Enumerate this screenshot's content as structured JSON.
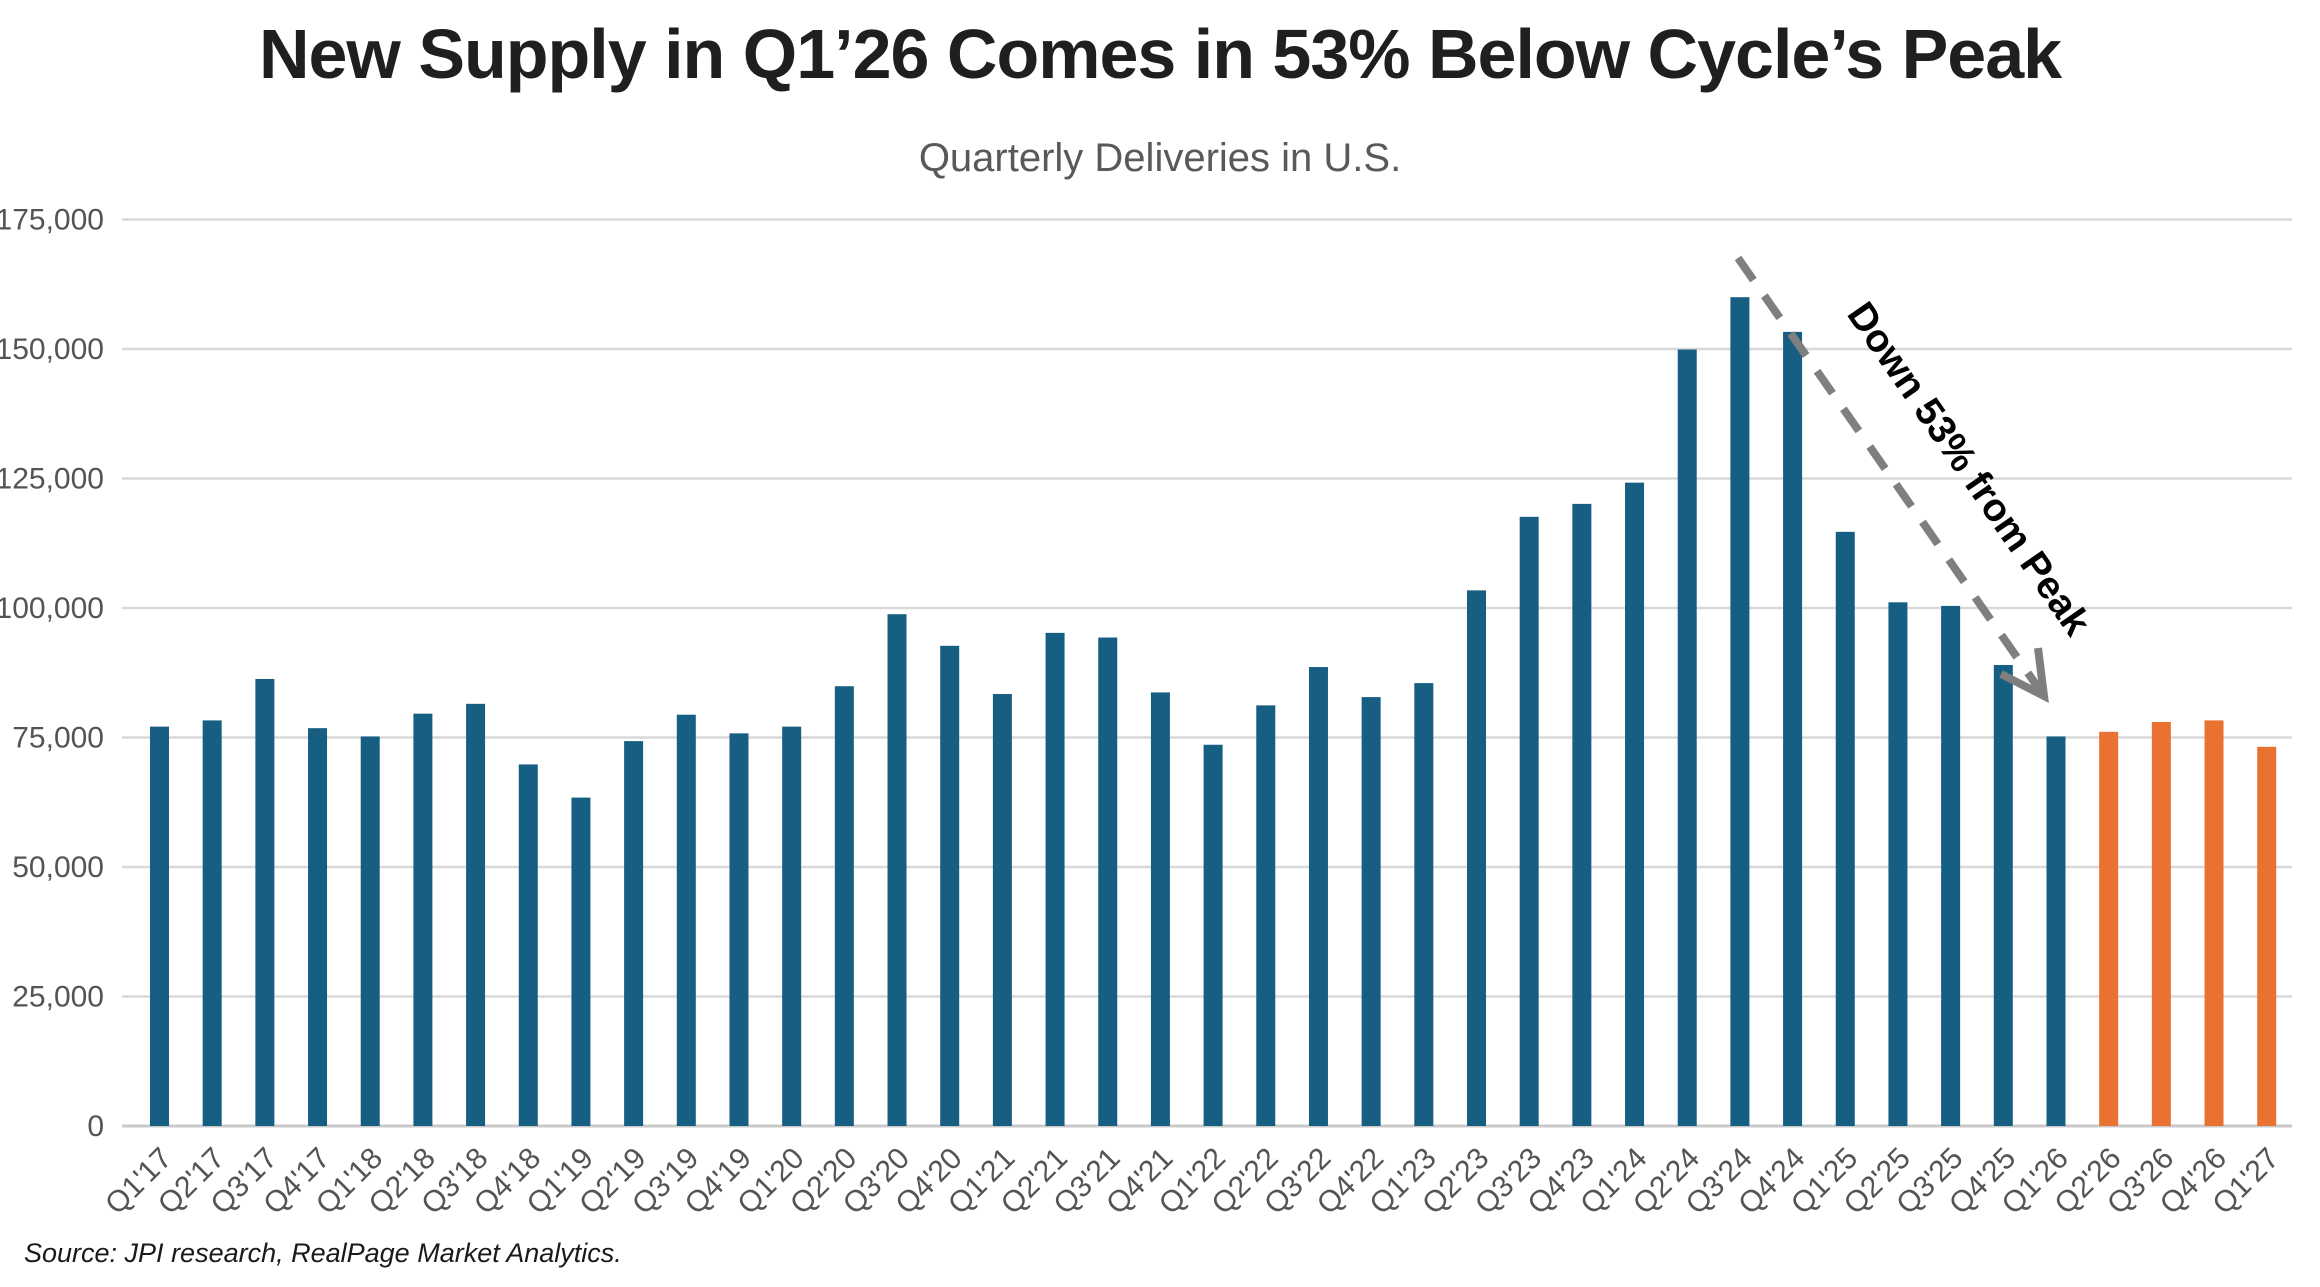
{
  "header": {
    "title": "New Supply in Q1’26 Comes in 53% Below Cycle’s Peak",
    "subtitle": "Quarterly Deliveries in U.S."
  },
  "annotation": {
    "label": "Down 53% from Peak"
  },
  "source": {
    "text": "Source: JPI research, RealPage Market Analytics."
  },
  "colors": {
    "bar_teal": "#165E82",
    "bar_orange": "#E97132",
    "gridline": "#D9D9D9",
    "baseline": "#C9C9C9",
    "axis_text": "#545454",
    "arrow": "#7F7F7F",
    "annotation_text": "#000000",
    "title_text": "#1F1F1F",
    "subtitle_text": "#595959"
  },
  "chart_data": {
    "type": "bar",
    "title": "New Supply in Q1’26 Comes in 53% Below Cycle’s Peak",
    "subtitle": "Quarterly Deliveries in U.S.",
    "xlabel": "",
    "ylabel": "",
    "ylim": [
      0,
      175000
    ],
    "ytick_step": 25000,
    "grid": true,
    "legend": "none",
    "categories": [
      "Q1'17",
      "Q2'17",
      "Q3'17",
      "Q4'17",
      "Q1'18",
      "Q2'18",
      "Q3'18",
      "Q4'18",
      "Q1'19",
      "Q2'19",
      "Q3'19",
      "Q4'19",
      "Q1'20",
      "Q2'20",
      "Q3'20",
      "Q4'20",
      "Q1'21",
      "Q2'21",
      "Q3'21",
      "Q4'21",
      "Q1'22",
      "Q2'22",
      "Q3'22",
      "Q4'22",
      "Q1'23",
      "Q2'23",
      "Q3'23",
      "Q4'23",
      "Q1'24",
      "Q2'24",
      "Q3'24",
      "Q4'24",
      "Q1'25",
      "Q2'25",
      "Q3'25",
      "Q4'25",
      "Q1'26",
      "Q2'26",
      "Q3'26",
      "Q4'26",
      "Q1'27"
    ],
    "values": [
      77100,
      78300,
      86300,
      76800,
      75200,
      79600,
      81500,
      69800,
      63400,
      74300,
      79400,
      75800,
      77100,
      84900,
      98800,
      92700,
      83400,
      95200,
      94300,
      83700,
      73600,
      81200,
      88600,
      82800,
      85500,
      103400,
      117600,
      120100,
      124200,
      149900,
      160000,
      153300,
      114700,
      101100,
      100400,
      89000,
      75200,
      76100,
      78000,
      78300,
      73200
    ],
    "highlight_categories": [
      "Q2'26",
      "Q3'26",
      "Q4'26",
      "Q1'27"
    ],
    "highlight_meaning": "forecast quarters shown in orange"
  }
}
